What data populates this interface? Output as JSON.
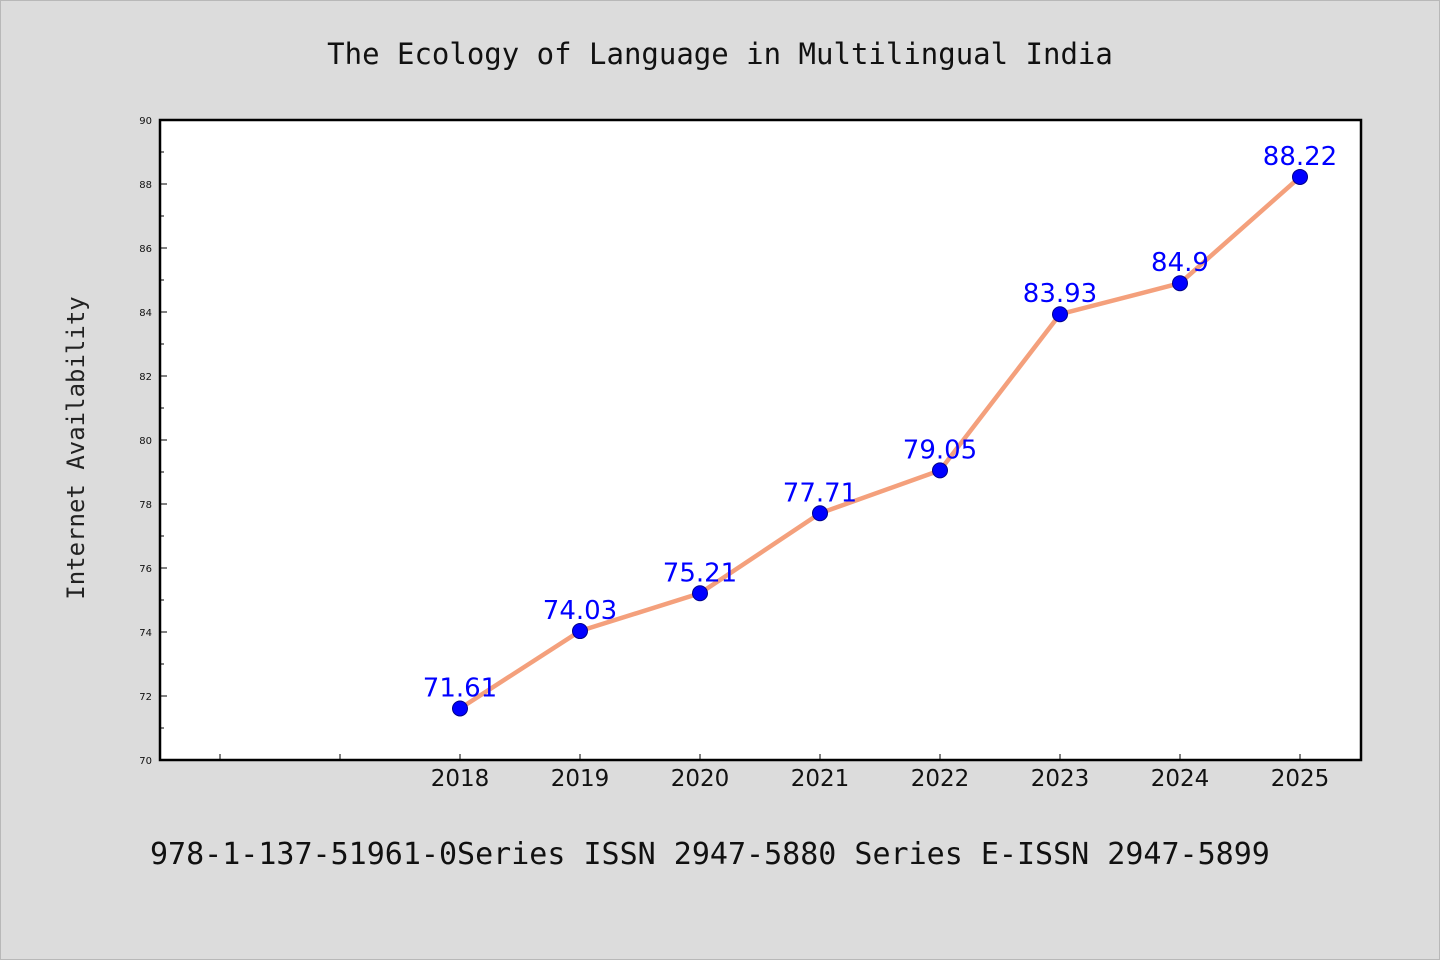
{
  "chart_data": {
    "type": "line",
    "title": "The Ecology of Language in Multilingual India",
    "xlabel": "",
    "ylabel": "Internet Availability",
    "categories": [
      "2018",
      "2019",
      "2020",
      "2021",
      "2022",
      "2023",
      "2024",
      "2025"
    ],
    "series": [
      {
        "values": [
          71.61,
          74.03,
          75.21,
          77.71,
          79.05,
          83.93,
          84.9,
          88.22
        ],
        "labels": [
          "71.61",
          "74.03",
          "75.21",
          "77.71",
          "79.05",
          "83.93",
          "84.9",
          "88.22"
        ]
      }
    ],
    "ylim": [
      70,
      90
    ],
    "yticks": [
      70,
      72,
      74,
      76,
      78,
      80,
      82,
      84,
      86,
      88,
      90
    ],
    "ytick_labels": [
      "70",
      "72",
      "74",
      "76",
      "78",
      "80",
      "82",
      "84",
      "86",
      "88",
      "90"
    ],
    "grid": false,
    "legend": "none",
    "colors": {
      "line": "#f4a07c",
      "marker": "#0000ff",
      "marker_edge": "#00008b",
      "data_label": "#0000ff",
      "background": "#dcdcdc",
      "plot_background": "#ffffff"
    }
  },
  "footer_text": "978-1-137-51961-0Series ISSN 2947-5880 Series E-ISSN 2947-5899"
}
